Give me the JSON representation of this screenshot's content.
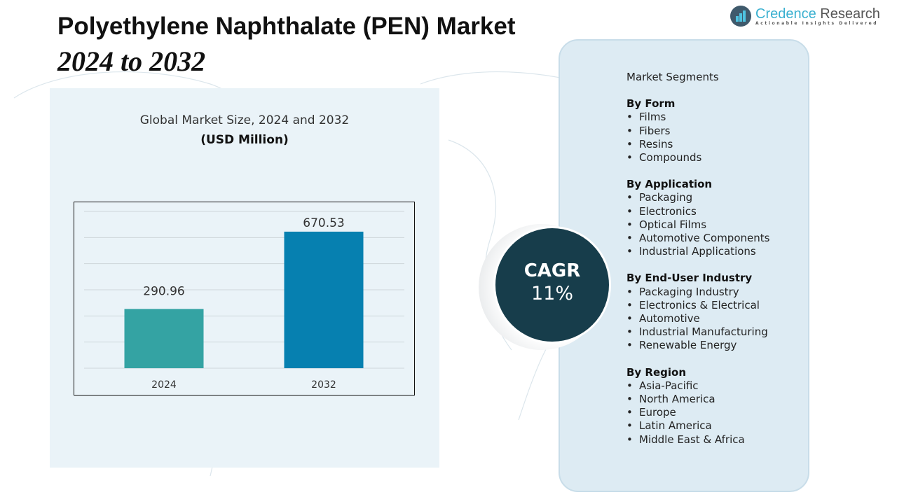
{
  "title": "Polyethylene Naphthalate (PEN) Market",
  "subtitle": "2024 to 2032",
  "logo": {
    "name_a": "Credence",
    "name_b": "Research",
    "tagline": "Actionable Insights Delivered"
  },
  "chart_heading": "Global Market Size, 2024 and 2032",
  "chart_unit": "(USD Million)",
  "chart_data": {
    "type": "bar",
    "title": "Global Market Size, 2024 and 2032",
    "ylabel": "USD Million",
    "categories": [
      "2024",
      "2032"
    ],
    "values": [
      290.96,
      670.53
    ],
    "value_labels": [
      "290.96",
      "670.53"
    ],
    "colors": [
      "#34a3a3",
      "#0680b0"
    ],
    "ylim": [
      0,
      770
    ],
    "grid": true
  },
  "cagr": {
    "label": "CAGR",
    "value": "11%"
  },
  "segments": {
    "heading": "Market Segments",
    "groups": [
      {
        "title": "By Form",
        "items": [
          "Films",
          "Fibers",
          "Resins",
          "Compounds"
        ]
      },
      {
        "title": "By Application",
        "items": [
          "Packaging",
          "Electronics",
          "Optical Films",
          "Automotive Components",
          "Industrial Applications"
        ]
      },
      {
        "title": "By End-User Industry",
        "items": [
          "Packaging Industry",
          "Electronics & Electrical",
          "Automotive",
          "Industrial Manufacturing",
          "Renewable Energy"
        ]
      },
      {
        "title": "By Region",
        "items": [
          "Asia-Pacific",
          "North America",
          "Europe",
          "Latin America",
          "Middle East & Africa"
        ]
      }
    ]
  }
}
